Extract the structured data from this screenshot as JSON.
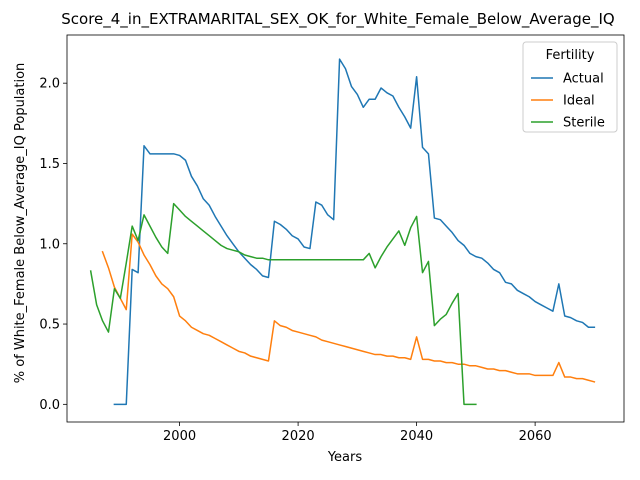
{
  "chart_data": {
    "type": "line",
    "title": "Score_4_in_EXTRAMARITAL_SEX_OK_for_White_Female_Below_Average_IQ",
    "xlabel": "Years",
    "ylabel": "% of White_Female Below_Average_IQ Population",
    "xlim": [
      1981,
      2075
    ],
    "ylim": [
      -0.11,
      2.3
    ],
    "x_ticks": [
      2000,
      2020,
      2040,
      2060
    ],
    "y_ticks": [
      0.0,
      0.5,
      1.0,
      1.5,
      2.0
    ],
    "x_tick_labels": [
      "2000",
      "2020",
      "2040",
      "2060"
    ],
    "y_tick_labels": [
      "0.0",
      "0.5",
      "1.0",
      "1.5",
      "2.0"
    ],
    "grid": false,
    "legend": {
      "title": "Fertility",
      "placement": "top-right"
    },
    "series": [
      {
        "name": "Actual",
        "color": "#1f77b4",
        "x": [
          1989,
          1990,
          1991,
          1992,
          1993,
          1994,
          1995,
          1996,
          1997,
          1998,
          1999,
          2000,
          2001,
          2002,
          2003,
          2004,
          2005,
          2006,
          2007,
          2008,
          2009,
          2010,
          2011,
          2012,
          2013,
          2014,
          2015,
          2016,
          2017,
          2018,
          2019,
          2020,
          2021,
          2022,
          2023,
          2024,
          2025,
          2026,
          2027,
          2028,
          2029,
          2030,
          2031,
          2032,
          2033,
          2034,
          2035,
          2036,
          2037,
          2038,
          2039,
          2040,
          2041,
          2042,
          2043,
          2044,
          2045,
          2046,
          2047,
          2048,
          2049,
          2050,
          2051,
          2052,
          2053,
          2054,
          2055,
          2056,
          2057,
          2058,
          2059,
          2060,
          2061,
          2062,
          2063,
          2064,
          2065,
          2066,
          2067,
          2068,
          2069,
          2070
        ],
        "values": [
          0.0,
          0.0,
          0.0,
          0.84,
          0.82,
          1.61,
          1.56,
          1.56,
          1.56,
          1.56,
          1.56,
          1.55,
          1.52,
          1.42,
          1.36,
          1.28,
          1.24,
          1.17,
          1.11,
          1.05,
          1.0,
          0.95,
          0.91,
          0.87,
          0.84,
          0.8,
          0.79,
          1.14,
          1.12,
          1.09,
          1.05,
          1.03,
          0.98,
          0.97,
          1.26,
          1.24,
          1.18,
          1.15,
          2.15,
          2.09,
          1.98,
          1.93,
          1.85,
          1.9,
          1.9,
          1.97,
          1.94,
          1.92,
          1.85,
          1.79,
          1.72,
          2.04,
          1.6,
          1.56,
          1.16,
          1.15,
          1.11,
          1.07,
          1.02,
          0.99,
          0.94,
          0.92,
          0.91,
          0.88,
          0.84,
          0.82,
          0.76,
          0.75,
          0.71,
          0.69,
          0.67,
          0.64,
          0.62,
          0.6,
          0.58,
          0.75,
          0.55,
          0.54,
          0.52,
          0.51,
          0.48,
          0.48
        ]
      },
      {
        "name": "Ideal",
        "color": "#ff7f0e",
        "x": [
          1987,
          1988,
          1989,
          1990,
          1991,
          1992,
          1993,
          1994,
          1995,
          1996,
          1997,
          1998,
          1999,
          2000,
          2001,
          2002,
          2003,
          2004,
          2005,
          2006,
          2007,
          2008,
          2009,
          2010,
          2011,
          2012,
          2013,
          2014,
          2015,
          2016,
          2017,
          2018,
          2019,
          2020,
          2021,
          2022,
          2023,
          2024,
          2025,
          2026,
          2027,
          2028,
          2029,
          2030,
          2031,
          2032,
          2033,
          2034,
          2035,
          2036,
          2037,
          2038,
          2039,
          2040,
          2041,
          2042,
          2043,
          2044,
          2045,
          2046,
          2047,
          2048,
          2049,
          2050,
          2051,
          2052,
          2053,
          2054,
          2055,
          2056,
          2057,
          2058,
          2059,
          2060,
          2061,
          2062,
          2063,
          2064,
          2065,
          2066,
          2067,
          2068,
          2069,
          2070
        ],
        "values": [
          0.95,
          0.85,
          0.73,
          0.66,
          0.59,
          1.06,
          1.01,
          0.93,
          0.87,
          0.8,
          0.75,
          0.72,
          0.67,
          0.55,
          0.52,
          0.48,
          0.46,
          0.44,
          0.43,
          0.41,
          0.39,
          0.37,
          0.35,
          0.33,
          0.32,
          0.3,
          0.29,
          0.28,
          0.27,
          0.52,
          0.49,
          0.48,
          0.46,
          0.45,
          0.44,
          0.43,
          0.42,
          0.4,
          0.39,
          0.38,
          0.37,
          0.36,
          0.35,
          0.34,
          0.33,
          0.32,
          0.31,
          0.31,
          0.3,
          0.3,
          0.29,
          0.29,
          0.28,
          0.42,
          0.28,
          0.28,
          0.27,
          0.27,
          0.26,
          0.26,
          0.25,
          0.25,
          0.24,
          0.24,
          0.23,
          0.22,
          0.22,
          0.21,
          0.21,
          0.2,
          0.19,
          0.19,
          0.19,
          0.18,
          0.18,
          0.18,
          0.18,
          0.26,
          0.17,
          0.17,
          0.16,
          0.16,
          0.15,
          0.14
        ]
      },
      {
        "name": "Sterile",
        "color": "#2ca02c",
        "x": [
          1985,
          1986,
          1987,
          1988,
          1989,
          1990,
          1991,
          1992,
          1993,
          1994,
          1995,
          1996,
          1997,
          1998,
          1999,
          2000,
          2001,
          2002,
          2003,
          2004,
          2005,
          2006,
          2007,
          2008,
          2009,
          2010,
          2011,
          2012,
          2013,
          2014,
          2015,
          2016,
          2017,
          2018,
          2019,
          2020,
          2021,
          2022,
          2023,
          2024,
          2025,
          2026,
          2027,
          2028,
          2029,
          2030,
          2031,
          2032,
          2033,
          2034,
          2035,
          2036,
          2037,
          2038,
          2039,
          2040,
          2041,
          2042,
          2043,
          2044,
          2045,
          2046,
          2047,
          2048,
          2049,
          2050
        ],
        "values": [
          0.83,
          0.62,
          0.52,
          0.45,
          0.72,
          0.66,
          0.88,
          1.11,
          1.02,
          1.18,
          1.11,
          1.04,
          0.98,
          0.94,
          1.25,
          1.21,
          1.17,
          1.14,
          1.11,
          1.08,
          1.05,
          1.02,
          0.99,
          0.97,
          0.96,
          0.95,
          0.93,
          0.92,
          0.91,
          0.91,
          0.9,
          0.9,
          0.9,
          0.9,
          0.9,
          0.9,
          0.9,
          0.9,
          0.9,
          0.9,
          0.9,
          0.9,
          0.9,
          0.9,
          0.9,
          0.9,
          0.9,
          0.94,
          0.85,
          0.92,
          0.98,
          1.03,
          1.08,
          0.99,
          1.1,
          1.17,
          0.82,
          0.89,
          0.49,
          0.53,
          0.56,
          0.63,
          0.69,
          0.0,
          0.0,
          0.0
        ]
      }
    ]
  }
}
